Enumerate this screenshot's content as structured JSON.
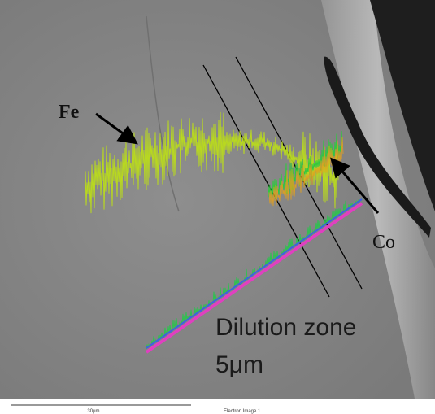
{
  "labels": {
    "fe": "Fe",
    "co": "Co",
    "zone": "Dilution zone",
    "zone_width": "5μm"
  },
  "footer": {
    "scale": "30μm",
    "caption": "Electron Image 1"
  }
}
